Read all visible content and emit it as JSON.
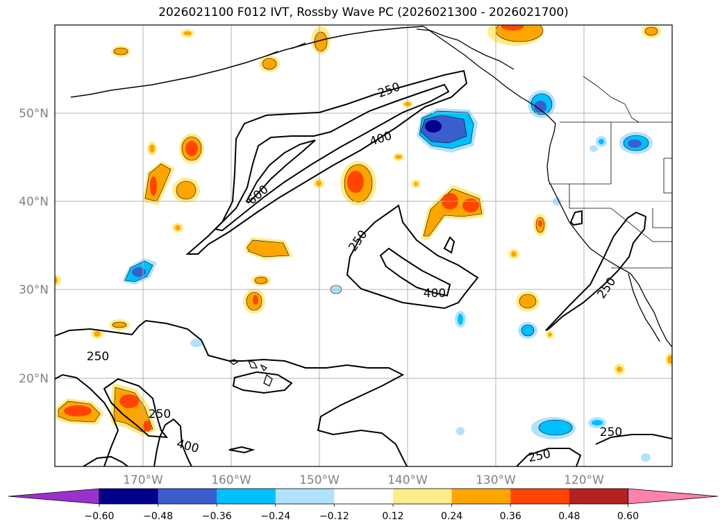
{
  "title": "2026021100 F012 IVT, Rossby Wave PC (2026021300 - 2026021700)",
  "lat_ticks": [
    "50°N",
    "40°N",
    "30°N",
    "20°N"
  ],
  "lon_ticks": [
    "170°W",
    "160°W",
    "150°W",
    "140°W",
    "130°W",
    "120°W"
  ],
  "contour_labels": {
    "c250_a": "250",
    "c400_a": "400",
    "c600": "600",
    "c250_b": "250",
    "c400_b": "400",
    "c250_c": "250",
    "c250_d": "250",
    "c250_e": "250",
    "c400_c": "400",
    "c250_f": "250",
    "c250_g": "250"
  },
  "colorbar": {
    "ticks": [
      "−0.60",
      "−0.48",
      "−0.36",
      "−0.24",
      "−0.12",
      "0.12",
      "0.24",
      "0.36",
      "0.48",
      "0.60"
    ],
    "colors": [
      "#9932cc",
      "#00008b",
      "#3a5fcd",
      "#00bfff",
      "#b0e2ff",
      "#ffffff",
      "#ffec8b",
      "#ffa500",
      "#ff4500",
      "#b22222",
      "#ff82ab"
    ]
  },
  "map_extent": {
    "lon": [
      -180,
      -110
    ],
    "lat": [
      10,
      60
    ]
  }
}
